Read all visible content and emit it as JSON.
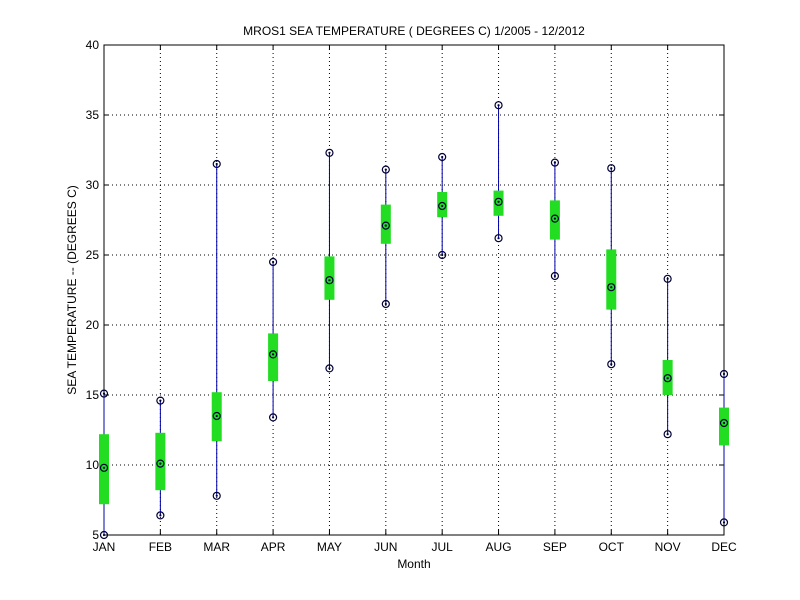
{
  "chart_data": {
    "type": "box",
    "title": "MROS1  SEA TEMPERATURE ( DEGREES C) 1/2005 - 12/2012",
    "xlabel": "Month",
    "ylabel": "SEA TEMPERATURE -- (DEGREES C)",
    "ylim": [
      5,
      40
    ],
    "yticks": [
      5,
      10,
      15,
      20,
      25,
      30,
      35,
      40
    ],
    "grid": true,
    "categories": [
      "JAN",
      "FEB",
      "MAR",
      "APR",
      "MAY",
      "JUN",
      "JUL",
      "AUG",
      "SEP",
      "OCT",
      "NOV",
      "DEC"
    ],
    "min": [
      5.0,
      6.4,
      7.8,
      13.4,
      16.9,
      21.5,
      25.0,
      26.2,
      23.5,
      17.2,
      12.2,
      5.9
    ],
    "q1": [
      7.2,
      8.2,
      11.7,
      16.0,
      21.8,
      25.8,
      27.7,
      27.8,
      26.1,
      21.1,
      15.0,
      11.4
    ],
    "median": [
      9.8,
      10.1,
      13.5,
      17.9,
      23.2,
      27.1,
      28.5,
      28.8,
      27.6,
      22.7,
      16.2,
      13.0
    ],
    "q3": [
      12.2,
      12.3,
      15.2,
      19.4,
      24.9,
      28.6,
      29.5,
      29.6,
      28.9,
      25.4,
      17.5,
      14.1
    ],
    "max": [
      15.1,
      14.6,
      31.5,
      24.5,
      32.3,
      31.1,
      32.0,
      35.7,
      31.6,
      31.2,
      23.3,
      16.5
    ],
    "colors": {
      "whisker": "#0000aa",
      "box": "#22dd22",
      "marker": "#000033",
      "grid": "#000000"
    }
  }
}
